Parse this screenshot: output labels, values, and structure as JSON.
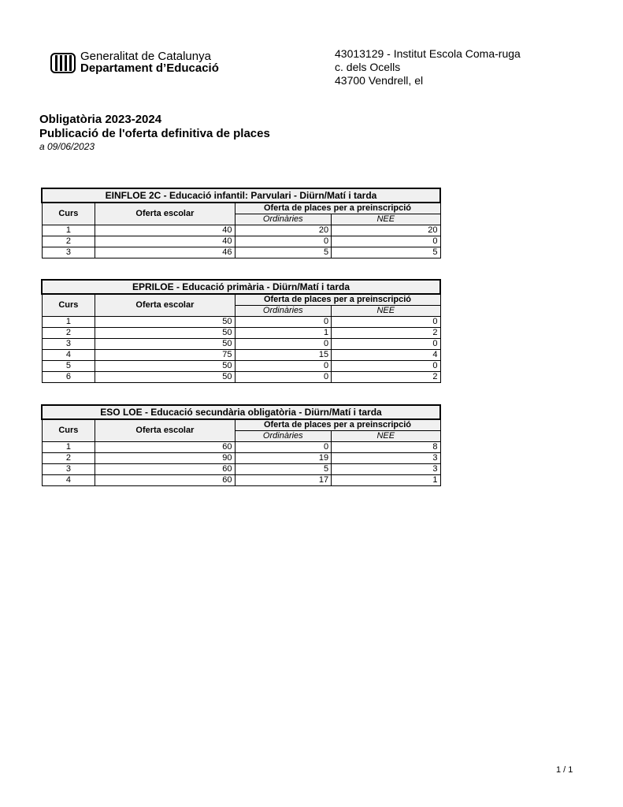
{
  "header": {
    "logo_line1": "Generalitat de Catalunya",
    "logo_line2": "Departament d’Educació",
    "address": [
      "43013129 - Institut Escola Coma-ruga",
      "c. dels Ocells",
      "43700 Vendrell, el"
    ]
  },
  "titles": {
    "line1": "Obligatòria 2023-2024",
    "line2": "Publicació de l'oferta definitiva de places",
    "date": "a 09/06/2023"
  },
  "columns": {
    "curs": "Curs",
    "oferta": "Oferta escolar",
    "preins": "Oferta de places per a preinscripció",
    "ord": "Ordinàries",
    "nee": "NEE"
  },
  "tables": [
    {
      "title": "EINFLOE 2C - Educació infantil: Parvulari    -    Diürn/Matí i tarda",
      "rows": [
        [
          "1",
          "40",
          "20",
          "20"
        ],
        [
          "2",
          "40",
          "0",
          "0"
        ],
        [
          "3",
          "46",
          "5",
          "5"
        ]
      ]
    },
    {
      "title": "EPRILOE - Educació primària    -    Diürn/Matí i tarda",
      "rows": [
        [
          "1",
          "50",
          "0",
          "0"
        ],
        [
          "2",
          "50",
          "1",
          "2"
        ],
        [
          "3",
          "50",
          "0",
          "0"
        ],
        [
          "4",
          "75",
          "15",
          "4"
        ],
        [
          "5",
          "50",
          "0",
          "0"
        ],
        [
          "6",
          "50",
          "0",
          "2"
        ]
      ]
    },
    {
      "title": "ESO LOE - Educació secundària obligatòria    -    Diürn/Matí i tarda",
      "rows": [
        [
          "1",
          "60",
          "0",
          "8"
        ],
        [
          "2",
          "90",
          "19",
          "3"
        ],
        [
          "3",
          "60",
          "5",
          "3"
        ],
        [
          "4",
          "60",
          "17",
          "1"
        ]
      ]
    }
  ],
  "footer": {
    "page": "1 / 1"
  }
}
